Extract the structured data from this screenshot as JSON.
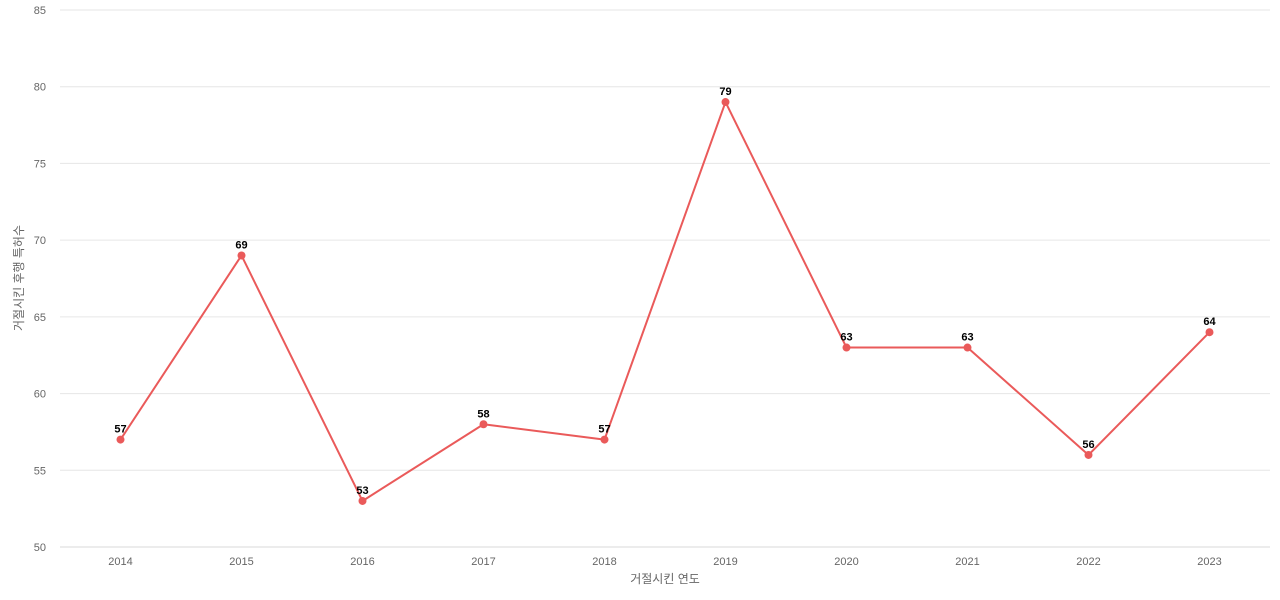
{
  "chart_data": {
    "type": "line",
    "title": "",
    "xlabel": "거절시킨 연도",
    "ylabel": "거절시킨 후행 특허수",
    "categories": [
      "2014",
      "2015",
      "2016",
      "2017",
      "2018",
      "2019",
      "2020",
      "2021",
      "2022",
      "2023"
    ],
    "series": [
      {
        "values": [
          57,
          69,
          53,
          58,
          57,
          79,
          63,
          63,
          56,
          64
        ],
        "color": "#ea5a5a"
      }
    ],
    "ylim": [
      50,
      85
    ],
    "yticks": [
      50,
      55,
      60,
      65,
      70,
      75,
      80,
      85
    ],
    "grid": true,
    "data_labels": true
  }
}
